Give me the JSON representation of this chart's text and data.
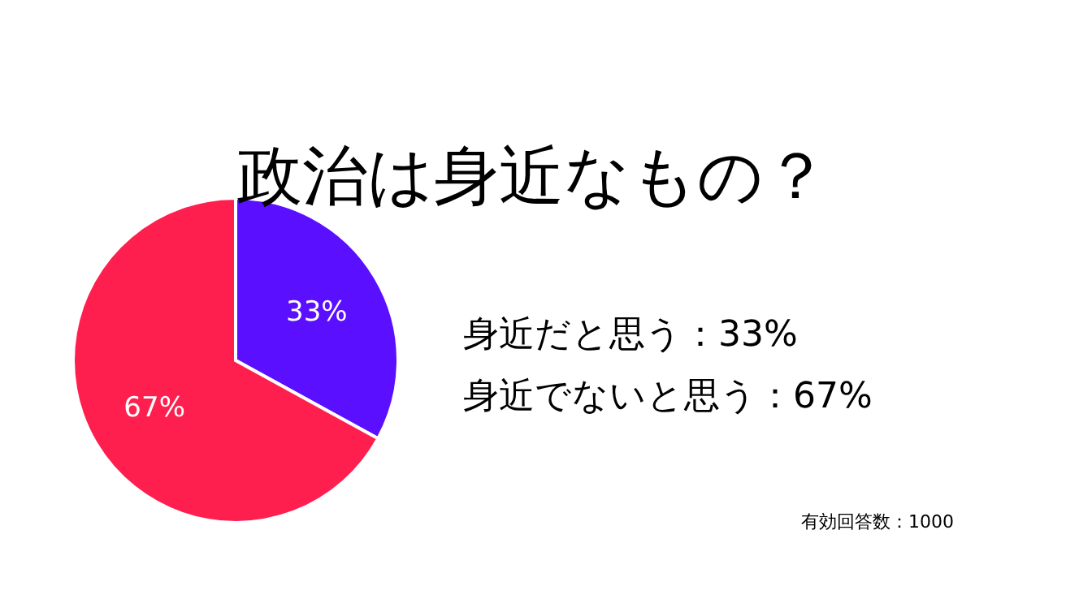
{
  "chart_data": {
    "type": "pie",
    "title": "政治は身近なもの？",
    "categories": [
      null,
      null
    ],
    "values": [
      33,
      67
    ],
    "colors": [
      "#5a10ff",
      "#ff1f4f"
    ],
    "value_labels": [
      "33%",
      "67%"
    ],
    "annotations": [
      "身近だと思う：33%",
      "身近でないと思う：67%",
      "有効回答数：1000"
    ]
  }
}
